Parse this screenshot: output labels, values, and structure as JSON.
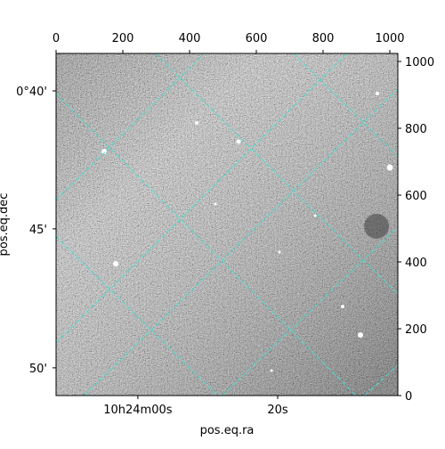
{
  "chart_data": {
    "type": "image",
    "xlabel": "pos.eq.ra",
    "ylabel": "pos.eq.dec",
    "xlim": [
      0,
      1024
    ],
    "ylim": [
      0,
      1024
    ],
    "xticks": [
      0,
      200,
      400,
      600,
      800,
      1000
    ],
    "yticks": [
      0,
      200,
      400,
      600,
      800,
      1000
    ],
    "ra_ticks": [
      {
        "value": 245,
        "label": "10h24m00s"
      },
      {
        "value": 664,
        "label": "20s"
      }
    ],
    "dec_ticks": [
      {
        "value": 912,
        "label": "0°40'"
      },
      {
        "value": 499,
        "label": "45'"
      },
      {
        "value": 83,
        "label": "50'"
      }
    ],
    "grid_color": "#40e0d0"
  }
}
